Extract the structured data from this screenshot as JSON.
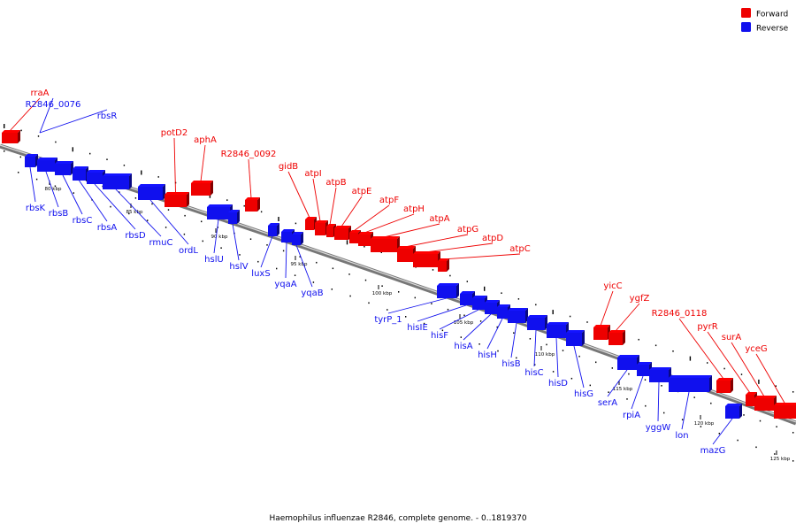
{
  "caption": "Haemophilus influenzae R2846, complete genome. - 0..1819370",
  "legend": [
    {
      "label": "Forward",
      "color": "#ee0000"
    },
    {
      "label": "Reverse",
      "color": "#1010ee"
    }
  ],
  "axis": {
    "ticks_kbp": [
      "80 kbp",
      "85 kbp",
      "90 kbp",
      "95 kbp",
      "100 kbp",
      "105 kbp",
      "110 kbp",
      "115 kbp",
      "120 kbp",
      "125 kbp"
    ]
  },
  "genes": [
    {
      "name": "rraA",
      "strand": "forward"
    },
    {
      "name": "R2846_0076",
      "strand": "reverse"
    },
    {
      "name": "rbsR",
      "strand": "reverse"
    },
    {
      "name": "rbsK",
      "strand": "reverse"
    },
    {
      "name": "rbsB",
      "strand": "reverse"
    },
    {
      "name": "rbsC",
      "strand": "reverse"
    },
    {
      "name": "rbsA",
      "strand": "reverse"
    },
    {
      "name": "rbsD",
      "strand": "reverse"
    },
    {
      "name": "rmuC",
      "strand": "reverse"
    },
    {
      "name": "ordL",
      "strand": "reverse"
    },
    {
      "name": "potD2",
      "strand": "forward"
    },
    {
      "name": "aphA",
      "strand": "forward"
    },
    {
      "name": "R2846_0092",
      "strand": "forward"
    },
    {
      "name": "hslU",
      "strand": "reverse"
    },
    {
      "name": "hslV",
      "strand": "reverse"
    },
    {
      "name": "luxS",
      "strand": "reverse"
    },
    {
      "name": "yqaA",
      "strand": "reverse"
    },
    {
      "name": "yqaB",
      "strand": "reverse"
    },
    {
      "name": "gidB",
      "strand": "forward"
    },
    {
      "name": "atpI",
      "strand": "forward"
    },
    {
      "name": "atpB",
      "strand": "forward"
    },
    {
      "name": "atpE",
      "strand": "forward"
    },
    {
      "name": "atpF",
      "strand": "forward"
    },
    {
      "name": "atpH",
      "strand": "forward"
    },
    {
      "name": "atpA",
      "strand": "forward"
    },
    {
      "name": "atpG",
      "strand": "forward"
    },
    {
      "name": "atpD",
      "strand": "forward"
    },
    {
      "name": "atpC",
      "strand": "forward"
    },
    {
      "name": "tyrP_1",
      "strand": "reverse"
    },
    {
      "name": "hisIE",
      "strand": "reverse"
    },
    {
      "name": "hisF",
      "strand": "reverse"
    },
    {
      "name": "hisA",
      "strand": "reverse"
    },
    {
      "name": "hisH",
      "strand": "reverse"
    },
    {
      "name": "hisB",
      "strand": "reverse"
    },
    {
      "name": "hisC",
      "strand": "reverse"
    },
    {
      "name": "hisD",
      "strand": "reverse"
    },
    {
      "name": "hisG",
      "strand": "reverse"
    },
    {
      "name": "yicC",
      "strand": "forward"
    },
    {
      "name": "ygfZ",
      "strand": "forward"
    },
    {
      "name": "R2846_0118",
      "strand": "forward"
    },
    {
      "name": "pyrR",
      "strand": "forward"
    },
    {
      "name": "surA",
      "strand": "forward"
    },
    {
      "name": "yceG",
      "strand": "forward"
    },
    {
      "name": "serA",
      "strand": "reverse"
    },
    {
      "name": "rpiA",
      "strand": "reverse"
    },
    {
      "name": "yggW",
      "strand": "reverse"
    },
    {
      "name": "lon",
      "strand": "reverse"
    },
    {
      "name": "mazG",
      "strand": "reverse"
    }
  ]
}
